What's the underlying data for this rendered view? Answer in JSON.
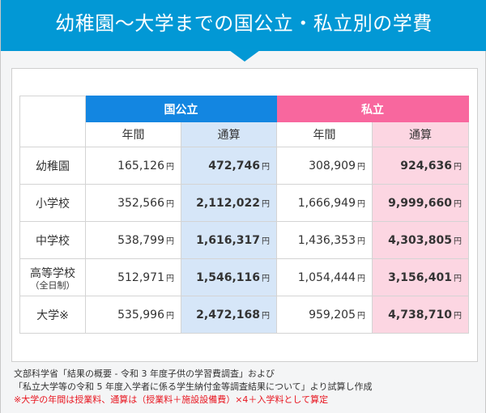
{
  "title": "幼稚園～大学までの国公立・私立別の学費",
  "groups": {
    "public": "国公立",
    "private": "私立"
  },
  "subheaders": {
    "annual": "年間",
    "total": "通算"
  },
  "unit": "円",
  "rows": [
    {
      "label": "幼稚園",
      "sub": "",
      "pub_annual": "165,126",
      "pub_total": "472,746",
      "pri_annual": "308,909",
      "pri_total": "924,636"
    },
    {
      "label": "小学校",
      "sub": "",
      "pub_annual": "352,566",
      "pub_total": "2,112,022",
      "pri_annual": "1,666,949",
      "pri_total": "9,999,660"
    },
    {
      "label": "中学校",
      "sub": "",
      "pub_annual": "538,799",
      "pub_total": "1,616,317",
      "pri_annual": "1,436,353",
      "pri_total": "4,303,805"
    },
    {
      "label": "高等学校",
      "sub": "（全日制）",
      "pub_annual": "512,971",
      "pub_total": "1,546,116",
      "pri_annual": "1,054,444",
      "pri_total": "3,156,401"
    },
    {
      "label": "大学※",
      "sub": "",
      "pub_annual": "535,996",
      "pub_total": "2,472,168",
      "pri_annual": "959,205",
      "pri_total": "4,738,710"
    }
  ],
  "notes": [
    "文部科学省「結果の概要 - 令和 3 年度子供の学習費調査」および",
    "「私立大学等の令和 5 年度入学者に係る学生納付金等調査結果について」より試算し作成"
  ],
  "note_red": "※大学の年間は授業料、通算は（授業料＋施設設備費）×4＋入学料として算定"
}
